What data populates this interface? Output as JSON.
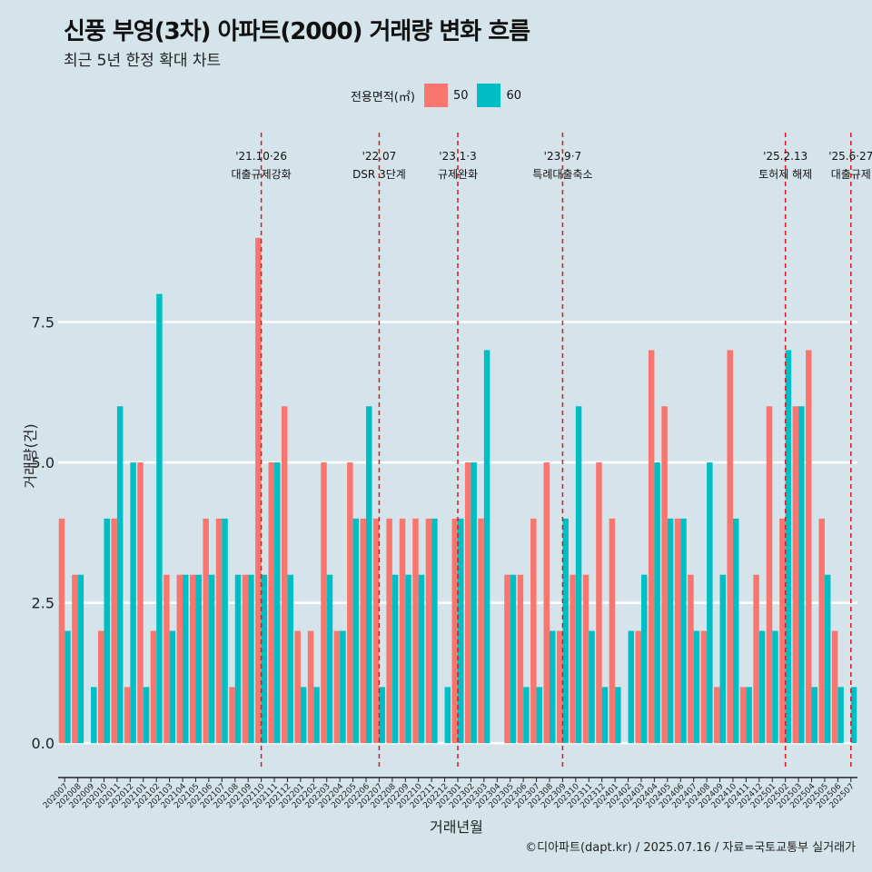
{
  "chart_data": {
    "type": "bar",
    "title": "신풍 부영(3차) 아파트(2000) 거래량 변화 흐름",
    "subtitle": "최근 5년 한정 확대 차트",
    "xlabel": "거래년월",
    "ylabel": "거래량(건)",
    "legend_title": "전용면적(㎡)",
    "caption": "©디아파트(dapt.kr) / 2025.07.16 / 자료=국토교통부 실거래가",
    "ylim": [
      -0.45,
      11.1
    ],
    "yticks": [
      0.0,
      2.5,
      5.0,
      7.5
    ],
    "ytick_labels": [
      "0.0",
      "2.5",
      "5.0",
      "7.5"
    ],
    "categories": [
      "202007",
      "202008",
      "202009",
      "202010",
      "202011",
      "202012",
      "202101",
      "202102",
      "202103",
      "202104",
      "202105",
      "202106",
      "202107",
      "202108",
      "202109",
      "202110",
      "202111",
      "202112",
      "202201",
      "202202",
      "202203",
      "202204",
      "202205",
      "202206",
      "202207",
      "202208",
      "202209",
      "202210",
      "202211",
      "202212",
      "202301",
      "202302",
      "202303",
      "202304",
      "202305",
      "202306",
      "202307",
      "202308",
      "202309",
      "202310",
      "202311",
      "202312",
      "202401",
      "202402",
      "202403",
      "202404",
      "202405",
      "202406",
      "202407",
      "202408",
      "202409",
      "202410",
      "202411",
      "202412",
      "202501",
      "202502",
      "202503",
      "202504",
      "202505",
      "202506",
      "202507"
    ],
    "series": [
      {
        "name": "50",
        "color": "#f8766d",
        "values": [
          4,
          3,
          0,
          2,
          4,
          1,
          5,
          2,
          3,
          3,
          3,
          4,
          4,
          1,
          3,
          9,
          5,
          6,
          2,
          2,
          5,
          2,
          5,
          4,
          4,
          4,
          4,
          4,
          4,
          0,
          4,
          5,
          4,
          0,
          3,
          3,
          4,
          5,
          2,
          3,
          3,
          5,
          4,
          0,
          2,
          7,
          6,
          4,
          3,
          2,
          1,
          7,
          1,
          3,
          6,
          4,
          6,
          7,
          4,
          2,
          0
        ]
      },
      {
        "name": "60",
        "color": "#00bfc4",
        "values": [
          2,
          3,
          1,
          4,
          6,
          5,
          1,
          8,
          2,
          3,
          3,
          3,
          4,
          3,
          3,
          3,
          5,
          3,
          1,
          1,
          3,
          2,
          4,
          6,
          1,
          3,
          3,
          3,
          4,
          1,
          4,
          5,
          7,
          0,
          3,
          1,
          1,
          2,
          4,
          6,
          2,
          1,
          1,
          2,
          3,
          5,
          4,
          4,
          2,
          5,
          3,
          4,
          1,
          2,
          2,
          7,
          6,
          1,
          3,
          1,
          1
        ]
      }
    ],
    "events": [
      {
        "date": "'21.10·26",
        "label": "대출규제강화",
        "month": "202110"
      },
      {
        "date": "'22.07",
        "label": "DSR 3단계",
        "month": "202207"
      },
      {
        "date": "'23.1·3",
        "label": "규제완화",
        "month": "202301"
      },
      {
        "date": "'23.9·7",
        "label": "특례대출축소",
        "month": "202309"
      },
      {
        "date": "'25.2.13",
        "label": "토허제 해제",
        "month": "202502"
      },
      {
        "date": "'25.6·27",
        "label": "대출규제",
        "month": "202507"
      }
    ]
  }
}
